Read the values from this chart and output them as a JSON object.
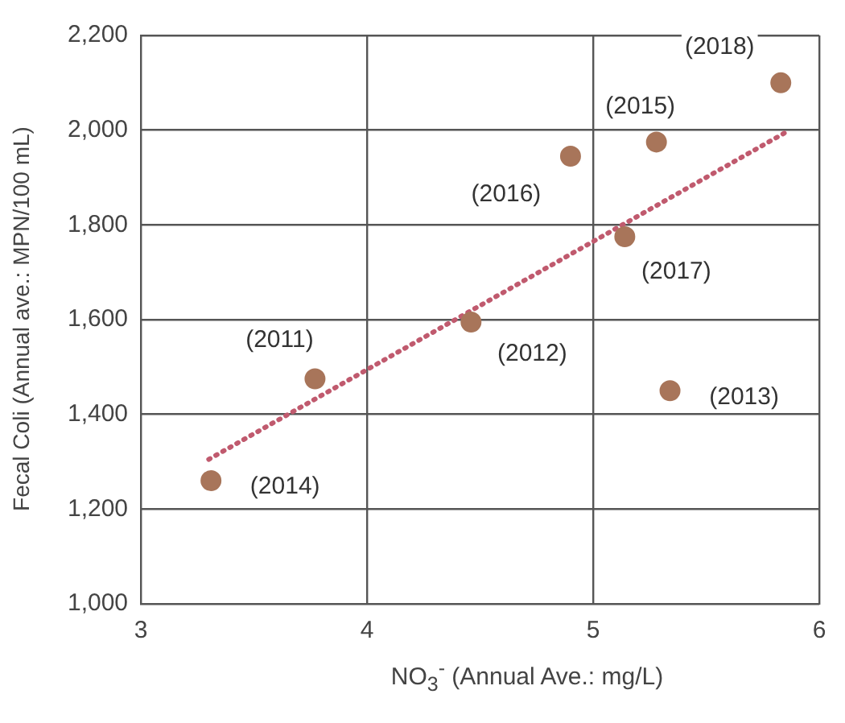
{
  "chart_data": {
    "type": "scatter",
    "xlabel": "NO$_{3}$$^{-}$ (Annual Ave.: mg/L)",
    "ylabel": "Fecal Coli (Annual ave.: MPN/100 mL)",
    "series": [
      {
        "color": "#a8755a",
        "x": [
          5.83,
          5.28,
          4.9,
          5.14,
          4.46,
          3.77,
          5.34,
          3.31
        ],
        "values": [
          2100,
          1975,
          1945,
          1775,
          1595,
          1475,
          1450,
          1260
        ],
        "marker": "circle"
      },
      {
        "type": "line",
        "color": "#c05a6e",
        "x": [
          3.3,
          5.85
        ],
        "values": [
          1305,
          1995
        ],
        "line_style": "dotted",
        "marker": "none"
      }
    ],
    "annotations": [
      {
        "text": "(2018)",
        "x": 5.83,
        "y": 2100
      },
      {
        "text": "(2015)",
        "x": 5.28,
        "y": 1975
      },
      {
        "text": "(2016)",
        "x": 4.9,
        "y": 1945
      },
      {
        "text": "(2017)",
        "x": 5.14,
        "y": 1775
      },
      {
        "text": "(2012)",
        "x": 4.46,
        "y": 1595
      },
      {
        "text": "(2011)",
        "x": 3.77,
        "y": 1475
      },
      {
        "text": "(2013)",
        "x": 5.34,
        "y": 1450
      },
      {
        "text": "(2014)",
        "x": 3.31,
        "y": 1260
      }
    ],
    "xlim": [
      3,
      6
    ],
    "xticks": [
      3,
      4,
      5,
      6
    ],
    "ylim": [
      1000,
      2200
    ],
    "yticks": [
      {
        "value": 1000,
        "label": "1,000"
      },
      {
        "value": 1200,
        "label": "1,200"
      },
      {
        "value": 1400,
        "label": "1,400"
      },
      {
        "value": 1600,
        "label": "1,600"
      },
      {
        "value": 1800,
        "label": "1,800"
      },
      {
        "value": 2000,
        "label": "2,000"
      },
      {
        "value": 2200,
        "label": "2,200"
      }
    ],
    "grid": true,
    "legend": false
  }
}
